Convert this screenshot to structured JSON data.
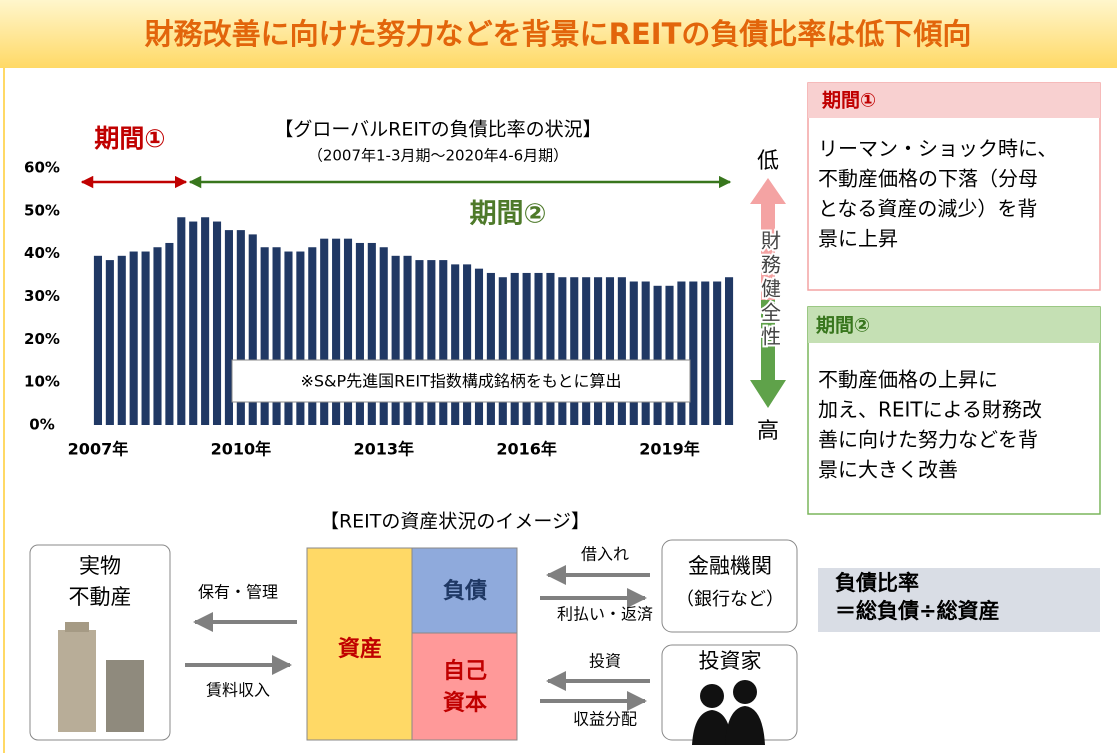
{
  "header": {
    "title": "財務改善に向けた努力などを背景にREITの負債比率は低下傾向"
  },
  "chart_data": {
    "type": "bar",
    "title": "【グローバルREITの負債比率の状況】",
    "subtitle": "（2007年1-3月期～2020年4-6月期）",
    "categories": [
      "2007年",
      null,
      null,
      null,
      null,
      null,
      null,
      null,
      null,
      null,
      null,
      null,
      "2010年",
      null,
      null,
      null,
      null,
      null,
      null,
      null,
      null,
      null,
      null,
      null,
      "2013年",
      null,
      null,
      null,
      null,
      null,
      null,
      null,
      null,
      null,
      null,
      null,
      "2016年",
      null,
      null,
      null,
      null,
      null,
      null,
      null,
      null,
      null,
      null,
      null,
      "2019年",
      null,
      null,
      null,
      null,
      null
    ],
    "values": [
      39.5,
      38.5,
      39.5,
      40.5,
      40.5,
      41.5,
      42.5,
      48.5,
      47.5,
      48.5,
      47.5,
      45.5,
      45.5,
      44.5,
      41.5,
      41.5,
      40.5,
      40.5,
      41.5,
      43.5,
      43.5,
      43.5,
      42.5,
      42.5,
      41.5,
      39.5,
      39.5,
      38.5,
      38.5,
      38.5,
      37.5,
      37.5,
      36.5,
      35.5,
      34.5,
      35.5,
      35.5,
      35.5,
      35.5,
      34.5,
      34.5,
      34.5,
      34.5,
      34.5,
      34.5,
      33.5,
      33.5,
      32.5,
      32.5,
      33.5,
      33.5,
      33.5,
      33.5,
      34.5
    ],
    "color": "#203864",
    "ylim": [
      0,
      60
    ],
    "yticks": [
      {
        "value": 0,
        "label": "0%"
      },
      {
        "value": 10,
        "label": "10%"
      },
      {
        "value": 20,
        "label": "20%"
      },
      {
        "value": 30,
        "label": "30%"
      },
      {
        "value": 40,
        "label": "40%"
      },
      {
        "value": 50,
        "label": "50%"
      },
      {
        "value": 60,
        "label": "60%"
      }
    ],
    "grid": false,
    "annotations": {
      "period1": "期間①",
      "period2": "期間②",
      "note": "※S&P先進国REIT指数構成銘柄をもとに算出"
    }
  },
  "scale": {
    "low": "低",
    "label": "財務健全性",
    "high": "高"
  },
  "panels": [
    {
      "title": "期間①",
      "lines": [
        "リーマン・ショック時に、",
        "不動産価格の下落（分母",
        "となる資産の減少）を背",
        "景に上昇"
      ]
    },
    {
      "title": "期間②",
      "lines": [
        "不動産価格の上昇に",
        "加え、REITによる財務改",
        "善に向けた努力などを背",
        "景に大きく改善"
      ]
    }
  ],
  "diagram": {
    "title": "【REITの資産状況のイメージ】",
    "property": [
      "実物",
      "不動産"
    ],
    "hold": "保有・管理",
    "rent": "賃料収入",
    "assets": "資産",
    "debt": "負債",
    "equity": [
      "自己",
      "資本"
    ],
    "borrow": "借入れ",
    "repay": "利払い・返済",
    "invest": "投資",
    "dividend": "収益分配",
    "bank": [
      "金融機関",
      "（銀行など）"
    ],
    "investor": "投資家",
    "formula": [
      "負債比率",
      "＝総負債÷総資産"
    ]
  }
}
